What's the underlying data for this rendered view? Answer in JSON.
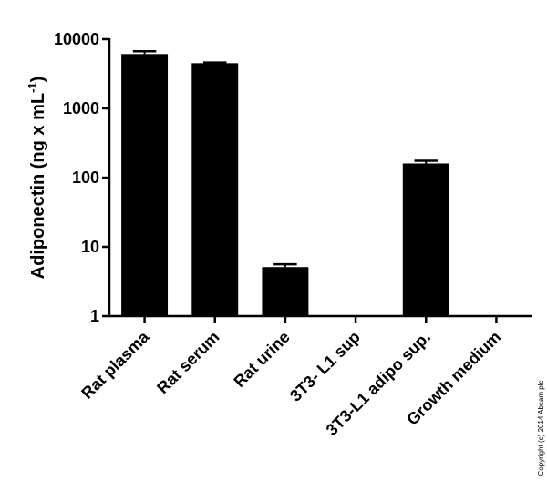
{
  "chart_data": {
    "type": "bar",
    "ylabel": {
      "text": "Adiponectin (ng x mL",
      "superscript": "-1",
      "suffix": ")"
    },
    "categories": [
      "Rat plasma",
      "Rat serum",
      "Rat urine",
      "3T3- L1 sup",
      "3T3-L1 adipo sup.",
      "Growth medium"
    ],
    "values": [
      6100,
      4500,
      5.1,
      null,
      160,
      null
    ],
    "errors": [
      600,
      100,
      0.5,
      null,
      15,
      null
    ],
    "color": "#000000",
    "log_scale": true,
    "ylim": [
      1,
      10000
    ],
    "yticks": [
      1,
      10,
      100,
      1000,
      10000
    ],
    "copyright": "Copyright (c) 2014 Abcam plc"
  }
}
